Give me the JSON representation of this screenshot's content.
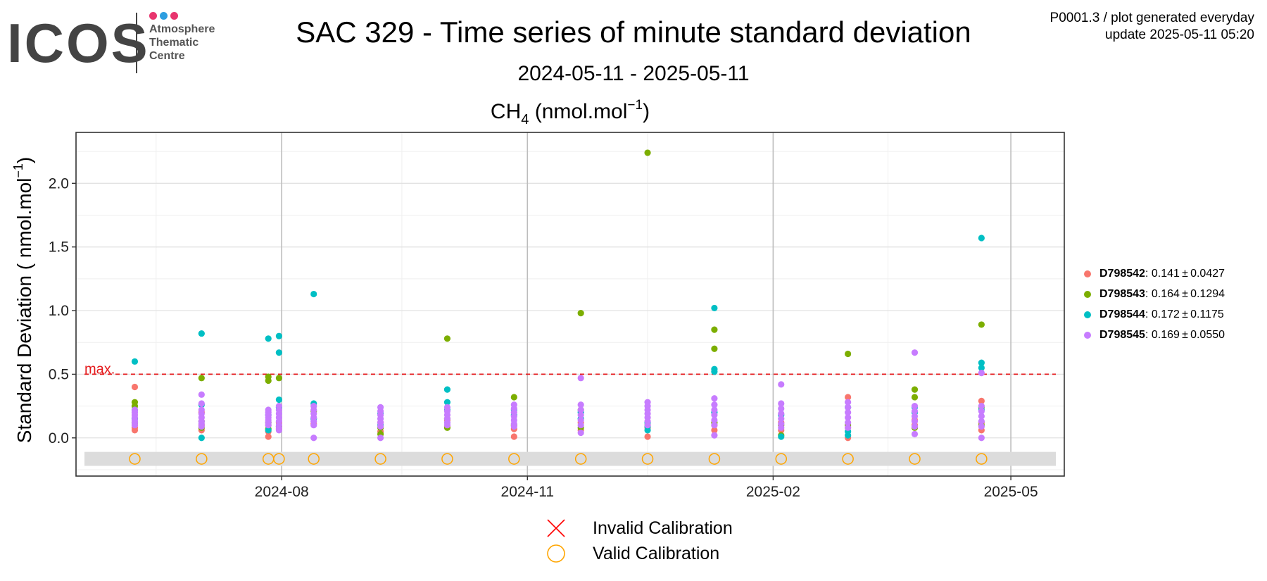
{
  "logo": {
    "text": "ICOS",
    "sub_lines": [
      "Atmosphere",
      "Thematic",
      "Centre"
    ],
    "dot_colors": [
      "#e8356e",
      "#2d9ee0",
      "#e8356e"
    ]
  },
  "header": {
    "title": "SAC 329 - Time series of minute standard deviation",
    "subtitle": "2024-05-11 - 2025-05-11",
    "corner_line1": "P0001.3 / plot generated everyday",
    "corner_line2": "update  2025-05-11 05:20"
  },
  "chart_data": {
    "type": "scatter",
    "panel_title": {
      "species": "CH",
      "subscript": "4",
      "unit_pre": " (nmol.mol",
      "unit_sup": "−1",
      "unit_post": ")"
    },
    "ylabel": {
      "pre": "Standard Deviation ( nmol.mol",
      "sup": "−1",
      "post": ")"
    },
    "ylim": [
      -0.3,
      2.4
    ],
    "yticks": [
      0.0,
      0.5,
      1.0,
      1.5,
      2.0
    ],
    "ytick_labels": [
      "0.0",
      "0.5",
      "1.0",
      "1.5",
      "2.0"
    ],
    "xlim": [
      "2024-05-16",
      "2025-05-21"
    ],
    "xticks": [
      "2024-08-01",
      "2024-11-01",
      "2025-02-01",
      "2025-05-01"
    ],
    "xtick_labels": [
      "2024-08",
      "2024-11",
      "2025-02",
      "2025-05"
    ],
    "x_minor_grid": [
      "2024-06-15",
      "2024-09-15",
      "2024-12-16",
      "2025-03-16"
    ],
    "grid": true,
    "threshold": {
      "value": 0.5,
      "label": "max.",
      "color": "#e41a1c"
    },
    "calibration_band": {
      "ymin": -0.22,
      "ymax": -0.11,
      "color": "#dcdcdc"
    },
    "legend_position": "right",
    "series": [
      {
        "name": "D798542",
        "color": "#f8766d",
        "stats": ": 0.141 ± 0.0427"
      },
      {
        "name": "D798543",
        "color": "#7cae00",
        "stats": ": 0.164 ± 0.1294"
      },
      {
        "name": "D798544",
        "color": "#00bfc4",
        "stats": ": 0.172 ± 0.1175"
      },
      {
        "name": "D798545",
        "color": "#c77cff",
        "stats": ": 0.169 ± 0.0550"
      }
    ],
    "calibrations": [
      {
        "date": "2024-06-07",
        "valid": true,
        "D798542": [
          0.4,
          0.06,
          0.08,
          0.1
        ],
        "D798543": [
          0.28,
          0.25,
          0.12
        ],
        "D798544": [
          0.6,
          0.22,
          0.15
        ],
        "D798545": [
          0.22,
          0.2,
          0.18,
          0.16,
          0.14,
          0.12,
          0.1
        ]
      },
      {
        "date": "2024-07-02",
        "valid": true,
        "D798542": [
          0.2,
          0.1,
          0.06
        ],
        "D798543": [
          0.47,
          0.08,
          0.13
        ],
        "D798544": [
          0.82,
          0.26,
          0.0
        ],
        "D798545": [
          0.34,
          0.27,
          0.22,
          0.19,
          0.16,
          0.13,
          0.11,
          0.09
        ]
      },
      {
        "date": "2024-07-27",
        "valid": true,
        "D798542": [
          0.01,
          0.1,
          0.05
        ],
        "D798543": [
          0.48,
          0.45,
          0.07,
          0.12
        ],
        "D798544": [
          0.78,
          0.06,
          0.18
        ],
        "D798545": [
          0.22,
          0.2,
          0.18,
          0.16,
          0.14,
          0.12,
          0.1
        ]
      },
      {
        "date": "2024-07-31",
        "valid": true,
        "D798542": [
          0.07,
          0.12
        ],
        "D798543": [
          0.47,
          0.09
        ],
        "D798544": [
          0.8,
          0.67,
          0.3,
          0.24
        ],
        "D798545": [
          0.25,
          0.22,
          0.19,
          0.16,
          0.13,
          0.1,
          0.08,
          0.06
        ]
      },
      {
        "date": "2024-08-13",
        "valid": true,
        "D798542": [
          0.11
        ],
        "D798543": [
          0.21
        ],
        "D798544": [
          1.13,
          0.27,
          0.15
        ],
        "D798545": [
          0.25,
          0.22,
          0.19,
          0.16,
          0.13,
          0.1,
          0.0
        ]
      },
      {
        "date": "2024-09-07",
        "valid": true,
        "D798542": [
          0.12,
          0.05
        ],
        "D798543": [
          0.03,
          0.08
        ],
        "D798544": [
          0.1,
          0.19
        ],
        "D798545": [
          0.24,
          0.21,
          0.18,
          0.15,
          0.12,
          0.09,
          0.0
        ]
      },
      {
        "date": "2024-10-02",
        "valid": true,
        "D798542": [
          0.09,
          0.14
        ],
        "D798543": [
          0.78,
          0.08,
          0.15
        ],
        "D798544": [
          0.38,
          0.28,
          0.22
        ],
        "D798545": [
          0.24,
          0.21,
          0.18,
          0.15,
          0.12,
          0.1
        ]
      },
      {
        "date": "2024-10-27",
        "valid": true,
        "D798542": [
          0.01,
          0.07
        ],
        "D798543": [
          0.32,
          0.1
        ],
        "D798544": [
          0.22,
          0.18
        ],
        "D798545": [
          0.26,
          0.23,
          0.2,
          0.17,
          0.14,
          0.11,
          0.09
        ]
      },
      {
        "date": "2024-11-21",
        "valid": true,
        "D798542": [
          0.12,
          0.06
        ],
        "D798543": [
          0.98,
          0.22,
          0.08
        ],
        "D798544": [
          0.2,
          0.15
        ],
        "D798545": [
          0.47,
          0.26,
          0.22,
          0.18,
          0.14,
          0.1,
          0.04
        ]
      },
      {
        "date": "2024-12-16",
        "valid": true,
        "D798542": [
          0.01,
          0.08
        ],
        "D798543": [
          2.24,
          0.1
        ],
        "D798544": [
          0.06,
          0.12,
          0.09
        ],
        "D798545": [
          0.28,
          0.25,
          0.22,
          0.19,
          0.16,
          0.13,
          0.1
        ]
      },
      {
        "date": "2025-01-10",
        "valid": true,
        "D798542": [
          0.06,
          0.1
        ],
        "D798543": [
          0.85,
          0.7,
          0.12
        ],
        "D798544": [
          1.02,
          0.54,
          0.52,
          0.2
        ],
        "D798545": [
          0.31,
          0.26,
          0.22,
          0.18,
          0.14,
          0.1,
          0.02
        ]
      },
      {
        "date": "2025-02-04",
        "valid": true,
        "D798542": [
          0.06,
          0.12
        ],
        "D798543": [
          0.02,
          0.1
        ],
        "D798544": [
          0.01,
          0.18
        ],
        "D798545": [
          0.42,
          0.27,
          0.23,
          0.19,
          0.15,
          0.11,
          0.08
        ]
      },
      {
        "date": "2025-03-01",
        "valid": true,
        "D798542": [
          0.32,
          0.0,
          0.08
        ],
        "D798543": [
          0.66,
          0.1
        ],
        "D798544": [
          0.02,
          0.05,
          0.24
        ],
        "D798545": [
          0.28,
          0.24,
          0.2,
          0.16,
          0.12,
          0.08
        ]
      },
      {
        "date": "2025-03-26",
        "valid": true,
        "D798542": [
          0.1,
          0.14
        ],
        "D798543": [
          0.38,
          0.32,
          0.08
        ],
        "D798544": [
          0.2,
          0.24
        ],
        "D798545": [
          0.67,
          0.25,
          0.21,
          0.17,
          0.13,
          0.09,
          0.03
        ]
      },
      {
        "date": "2025-04-20",
        "valid": true,
        "D798542": [
          0.29,
          0.06,
          0.12
        ],
        "D798543": [
          0.89,
          0.24,
          0.1
        ],
        "D798544": [
          1.57,
          0.59,
          0.55,
          0.22
        ],
        "D798545": [
          0.51,
          0.25,
          0.21,
          0.17,
          0.13,
          0.09,
          0.0
        ]
      }
    ],
    "bottom_legend": [
      {
        "label": "Invalid Calibration",
        "symbol": "cross",
        "color": "#ff0000"
      },
      {
        "label": "Valid Calibration",
        "symbol": "circle",
        "color": "#ffa500"
      }
    ]
  }
}
